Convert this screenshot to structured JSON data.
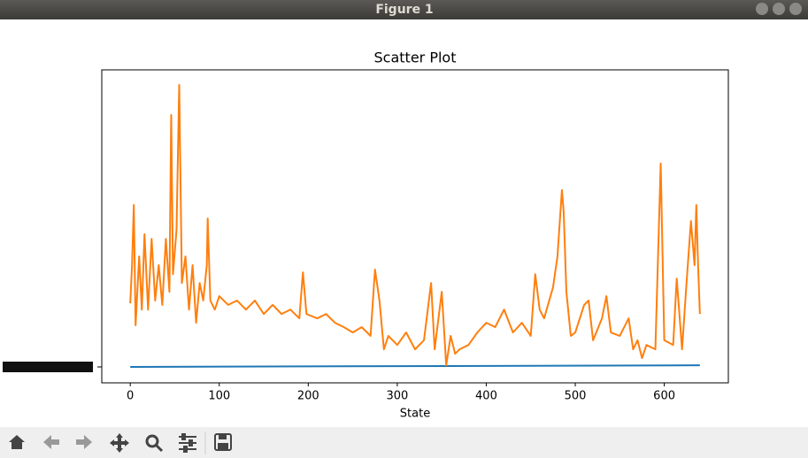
{
  "window": {
    "title": "Figure 1"
  },
  "chart_data": {
    "type": "line",
    "title": "Scatter Plot",
    "xlabel": "State",
    "xlim": [
      -32,
      672
    ],
    "ylim": [
      0,
      100
    ],
    "xticks": [
      0,
      100,
      200,
      300,
      400,
      500,
      600
    ],
    "series": [
      {
        "color": "#1f77b4",
        "x": [
          0,
          640
        ],
        "values": [
          5.1,
          5.6
        ]
      },
      {
        "color": "#ff7f0e",
        "x": [
          0,
          2,
          4,
          6,
          10,
          13,
          16,
          20,
          24,
          28,
          32,
          36,
          40,
          44,
          46,
          48,
          52,
          55,
          58,
          62,
          66,
          70,
          74,
          78,
          82,
          86,
          87,
          90,
          95,
          100,
          110,
          120,
          130,
          140,
          150,
          160,
          170,
          180,
          190,
          194,
          198,
          210,
          220,
          230,
          240,
          250,
          260,
          270,
          275,
          280,
          285,
          290,
          300,
          310,
          320,
          330,
          338,
          342,
          350,
          355,
          360,
          365,
          370,
          380,
          390,
          400,
          410,
          420,
          430,
          440,
          450,
          455,
          460,
          465,
          475,
          480,
          485,
          487,
          490,
          495,
          500,
          510,
          515,
          520,
          530,
          535,
          540,
          550,
          560,
          565,
          570,
          575,
          580,
          590,
          596,
          600,
          610,
          614,
          620,
          625,
          630,
          634,
          636,
          638,
          640
        ],
        "values": [
          25.4,
          37.6,
          56.8,
          18.4,
          40.4,
          23.4,
          47.5,
          23.4,
          46,
          26.3,
          37.6,
          24.9,
          46,
          29.1,
          85.6,
          34.7,
          48.9,
          95.2,
          31.9,
          40.4,
          23.4,
          37.6,
          19.2,
          31.9,
          26.3,
          37.6,
          52.5,
          26.3,
          23.4,
          27.7,
          24.9,
          26.3,
          23.4,
          26.3,
          22,
          24.9,
          22,
          23.4,
          20.6,
          35.3,
          22,
          20.6,
          22,
          19.2,
          17.8,
          16.1,
          17.8,
          15,
          36.2,
          26.3,
          10.7,
          15,
          12.1,
          16.1,
          10.7,
          13.6,
          31.9,
          10.7,
          29.1,
          5.6,
          15,
          9.3,
          10.7,
          12.1,
          16.1,
          19.2,
          17.8,
          23.4,
          16.1,
          19.2,
          15,
          34.7,
          23.4,
          20.6,
          30.5,
          40.4,
          61.6,
          54.5,
          29.1,
          15,
          16.1,
          24.9,
          26.3,
          13.6,
          20.6,
          27.7,
          16.1,
          15,
          20.6,
          10.7,
          13.6,
          7.9,
          12.1,
          10.7,
          70.1,
          13.6,
          12.1,
          33.3,
          10.7,
          31.9,
          51.7,
          37.6,
          56.8,
          37.6,
          22
        ]
      }
    ]
  }
}
